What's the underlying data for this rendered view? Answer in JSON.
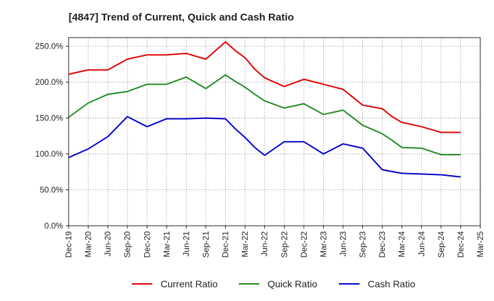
{
  "chart_data": {
    "type": "line",
    "title": "[4847]  Trend of Current, Quick and Cash Ratio",
    "xlabel": "",
    "ylabel": "",
    "ylim": [
      0,
      262
    ],
    "y_ticks": [
      0,
      50,
      100,
      150,
      200,
      250
    ],
    "y_tick_labels": [
      "0.0%",
      "50.0%",
      "100.0%",
      "150.0%",
      "200.0%",
      "250.0%"
    ],
    "x_tick_labels": [
      "Dec-19",
      "Mar-20",
      "Jun-20",
      "Sep-20",
      "Dec-20",
      "Mar-21",
      "Jun-21",
      "Sep-21",
      "Dec-21",
      "Mar-22",
      "Jun-22",
      "Sep-22",
      "Dec-22",
      "Mar-23",
      "Jun-23",
      "Sep-23",
      "Dec-23",
      "Mar-24",
      "Jun-24",
      "Sep-24",
      "Dec-24",
      "Mar-25"
    ],
    "grid": true,
    "legend_position": "bottom",
    "series": [
      {
        "name": "Current Ratio",
        "color": "#e00000",
        "points": [
          [
            0,
            211
          ],
          [
            1,
            217
          ],
          [
            2,
            217
          ],
          [
            3,
            232
          ],
          [
            4,
            238
          ],
          [
            5,
            238
          ],
          [
            6,
            240
          ],
          [
            7,
            232
          ],
          [
            8,
            256
          ],
          [
            8.5,
            244
          ],
          [
            9,
            234
          ],
          [
            9.5,
            218
          ],
          [
            10,
            206
          ],
          [
            11,
            194
          ],
          [
            12,
            204
          ],
          [
            13,
            197
          ],
          [
            14,
            190
          ],
          [
            15,
            168
          ],
          [
            16,
            163
          ],
          [
            16.5,
            152
          ],
          [
            17,
            144
          ],
          [
            18,
            138
          ],
          [
            19,
            130
          ],
          [
            20,
            130
          ]
        ]
      },
      {
        "name": "Quick Ratio",
        "color": "#228b22",
        "points": [
          [
            0,
            151
          ],
          [
            1,
            171
          ],
          [
            2,
            183
          ],
          [
            3,
            187
          ],
          [
            4,
            197
          ],
          [
            5,
            197
          ],
          [
            6,
            207
          ],
          [
            7,
            191
          ],
          [
            8,
            210
          ],
          [
            8.5,
            201
          ],
          [
            9,
            193
          ],
          [
            9.5,
            183
          ],
          [
            10,
            174
          ],
          [
            11,
            164
          ],
          [
            12,
            170
          ],
          [
            13,
            155
          ],
          [
            14,
            161
          ],
          [
            15,
            140
          ],
          [
            16,
            128
          ],
          [
            16.5,
            119
          ],
          [
            17,
            109
          ],
          [
            18,
            108
          ],
          [
            19,
            99
          ],
          [
            20,
            99
          ]
        ]
      },
      {
        "name": "Cash Ratio",
        "color": "#0000cc",
        "points": [
          [
            0,
            95
          ],
          [
            1,
            107
          ],
          [
            2,
            124
          ],
          [
            3,
            152
          ],
          [
            4,
            138
          ],
          [
            5,
            149
          ],
          [
            6,
            149
          ],
          [
            7,
            150
          ],
          [
            8,
            149
          ],
          [
            8.5,
            135
          ],
          [
            9,
            123
          ],
          [
            9.5,
            109
          ],
          [
            10,
            98
          ],
          [
            11,
            117
          ],
          [
            12,
            117
          ],
          [
            13,
            100
          ],
          [
            14,
            114
          ],
          [
            15,
            108
          ],
          [
            16,
            78
          ],
          [
            17,
            73
          ],
          [
            18,
            72
          ],
          [
            19,
            71
          ],
          [
            20,
            68
          ]
        ]
      }
    ]
  }
}
